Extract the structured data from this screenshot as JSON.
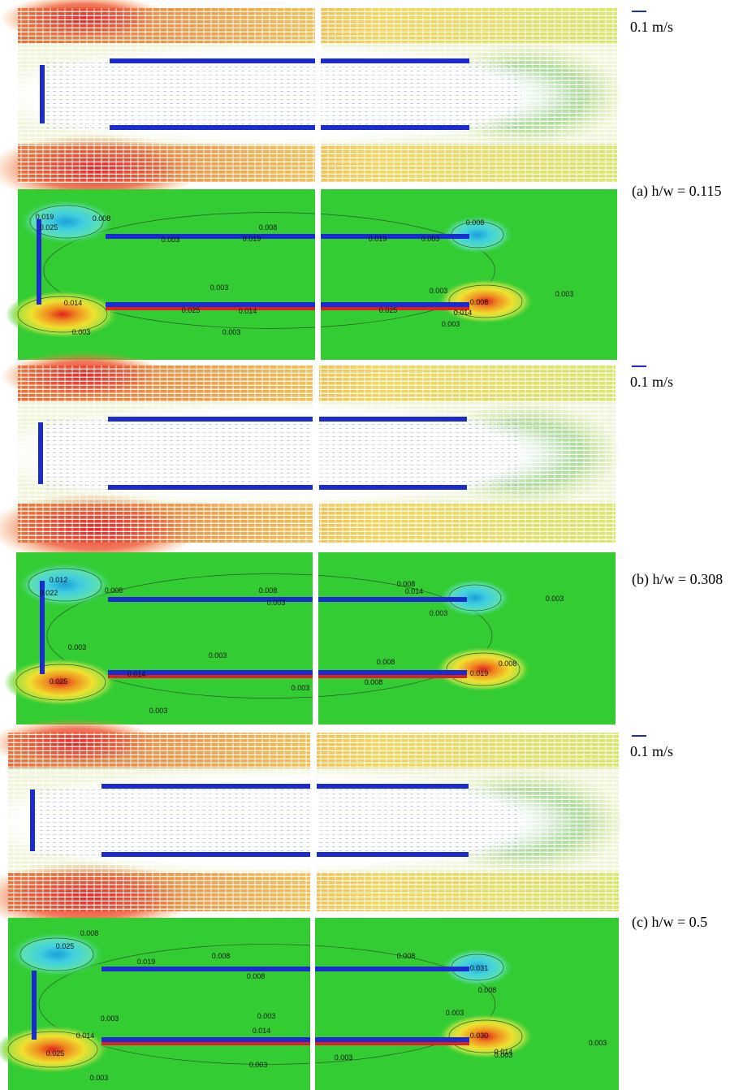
{
  "figure": {
    "panels": [
      {
        "scale_label": "0.1 m/s",
        "caption": "(a) h/w = 0.115",
        "contour_labels": [
          "0.019",
          "0.025",
          "0.008",
          "0.003",
          "0.008",
          "0.019",
          "0.008",
          "0.019",
          "0.003",
          "0.003",
          "0.014",
          "0.025",
          "0.014",
          "0.003",
          "0.003",
          "0.003",
          "0.025",
          "0.014",
          "0.003",
          "0.003",
          "0.008"
        ]
      },
      {
        "scale_label": "0.1 m/s",
        "caption": "(b) h/w = 0.308",
        "contour_labels": [
          "0.012",
          "0.022",
          "0.008",
          "0.008",
          "0.003",
          "0.008",
          "0.014",
          "0.003",
          "0.003",
          "0.003",
          "0.003",
          "0.014",
          "0.025",
          "0.008",
          "0.008",
          "0.019",
          "0.008",
          "0.003",
          "0.003"
        ]
      },
      {
        "scale_label": "0.1 m/s",
        "caption": "(c) h/w = 0.5",
        "contour_labels": [
          "0.008",
          "0.025",
          "0.019",
          "0.008",
          "0.008",
          "0.008",
          "0.031",
          "0.008",
          "0.003",
          "0.003",
          "0.014",
          "0.014",
          "0.003",
          "0.030",
          "0.014",
          "0.025",
          "0.003",
          "0.003",
          "0.003",
          "0.003",
          "0.003"
        ]
      }
    ]
  }
}
